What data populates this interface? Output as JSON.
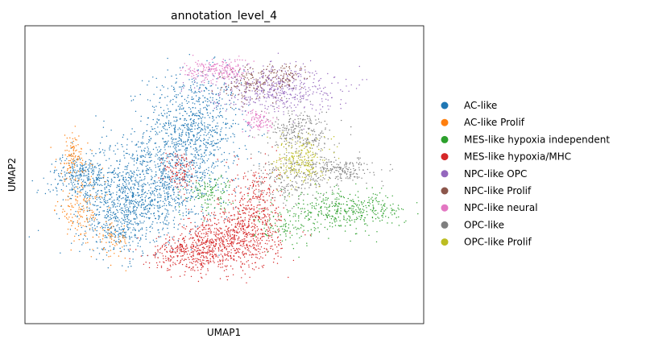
{
  "chart_data": {
    "type": "scatter",
    "title": "annotation_level_4",
    "xlabel": "UMAP1",
    "ylabel": "UMAP2",
    "x_ticks": [],
    "y_ticks": [],
    "grid": false,
    "legend_position": "right",
    "xlim": [
      0,
      100
    ],
    "ylim": [
      0,
      100
    ],
    "series": [
      {
        "name": "AC-like",
        "color": "#1f77b4",
        "clusters": [
          {
            "cx": 42,
            "cy": 65,
            "sx": 6,
            "sy": 10,
            "n": 900
          },
          {
            "cx": 30,
            "cy": 46,
            "sx": 9,
            "sy": 8,
            "n": 1100
          },
          {
            "cx": 14,
            "cy": 50,
            "sx": 4,
            "sy": 3,
            "n": 220
          },
          {
            "cx": 24,
            "cy": 34,
            "sx": 5,
            "sy": 6,
            "n": 380
          }
        ]
      },
      {
        "name": "AC-like Prolif",
        "color": "#ff7f0e",
        "clusters": [
          {
            "cx": 12,
            "cy": 56,
            "sx": 2,
            "sy": 4,
            "n": 110
          },
          {
            "cx": 14,
            "cy": 38,
            "sx": 3,
            "sy": 5,
            "n": 150
          },
          {
            "cx": 22,
            "cy": 28,
            "sx": 2,
            "sy": 3,
            "n": 60
          }
        ]
      },
      {
        "name": "MES-like hypoxia independent",
        "color": "#2ca02c",
        "clusters": [
          {
            "cx": 80,
            "cy": 38,
            "sx": 8,
            "sy": 3,
            "n": 420
          },
          {
            "cx": 46,
            "cy": 44,
            "sx": 3,
            "sy": 3,
            "n": 120
          },
          {
            "cx": 66,
            "cy": 32,
            "sx": 4,
            "sy": 3,
            "n": 90
          }
        ]
      },
      {
        "name": "MES-like hypoxia/MHC",
        "color": "#d62728",
        "clusters": [
          {
            "cx": 52,
            "cy": 28,
            "sx": 6,
            "sy": 5,
            "n": 700
          },
          {
            "cx": 41,
            "cy": 24,
            "sx": 5,
            "sy": 3,
            "n": 350
          },
          {
            "cx": 58,
            "cy": 40,
            "sx": 3,
            "sy": 7,
            "n": 300
          },
          {
            "cx": 39,
            "cy": 51,
            "sx": 2,
            "sy": 4,
            "n": 110
          }
        ]
      },
      {
        "name": "NPC-like OPC",
        "color": "#9467bd",
        "clusters": [
          {
            "cx": 62,
            "cy": 79,
            "sx": 8,
            "sy": 4,
            "n": 520
          }
        ]
      },
      {
        "name": "NPC-like Prolif",
        "color": "#8c564b",
        "clusters": [
          {
            "cx": 57,
            "cy": 81,
            "sx": 5,
            "sy": 3,
            "n": 150
          },
          {
            "cx": 66,
            "cy": 83,
            "sx": 3,
            "sy": 2,
            "n": 70
          }
        ]
      },
      {
        "name": "NPC-like neural",
        "color": "#e377c2",
        "clusters": [
          {
            "cx": 48,
            "cy": 85,
            "sx": 4,
            "sy": 2,
            "n": 200
          },
          {
            "cx": 59,
            "cy": 68,
            "sx": 2,
            "sy": 2,
            "n": 100
          }
        ]
      },
      {
        "name": "OPC-like",
        "color": "#7f7f7f",
        "clusters": [
          {
            "cx": 69,
            "cy": 64,
            "sx": 4,
            "sy": 4,
            "n": 260
          },
          {
            "cx": 79,
            "cy": 52,
            "sx": 4,
            "sy": 2,
            "n": 200
          },
          {
            "cx": 67,
            "cy": 48,
            "sx": 5,
            "sy": 4,
            "n": 220
          }
        ]
      },
      {
        "name": "OPC-like Prolif",
        "color": "#bcbd22",
        "clusters": [
          {
            "cx": 69,
            "cy": 55,
            "sx": 3,
            "sy": 4,
            "n": 240
          }
        ]
      }
    ]
  }
}
